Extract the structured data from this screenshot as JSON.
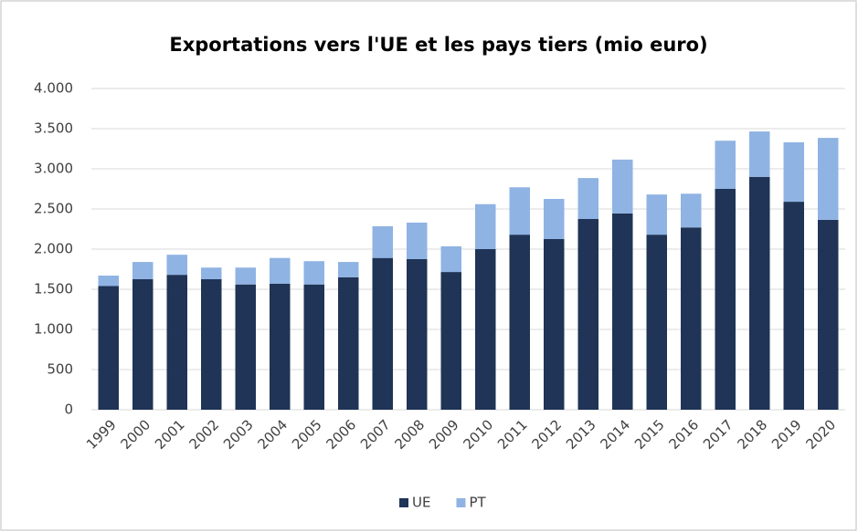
{
  "chart_data": {
    "type": "stacked_bar",
    "title": "Exportations vers l'UE et les pays tiers (mio euro)",
    "categories": [
      "1999",
      "2000",
      "2001",
      "2002",
      "2003",
      "2004",
      "2005",
      "2006",
      "2007",
      "2008",
      "2009",
      "2010",
      "2011",
      "2012",
      "2013",
      "2014",
      "2015",
      "2016",
      "2017",
      "2018",
      "2019",
      "2020"
    ],
    "series": [
      {
        "name": "UE",
        "color": "#1f3456",
        "values": [
          1540,
          1625,
          1680,
          1625,
          1560,
          1570,
          1560,
          1650,
          1890,
          1875,
          1715,
          2000,
          2180,
          2125,
          2375,
          2445,
          2180,
          2270,
          2750,
          2900,
          2590,
          2365
        ]
      },
      {
        "name": "PT",
        "color": "#8fb3e3",
        "values": [
          130,
          215,
          250,
          145,
          210,
          320,
          290,
          190,
          395,
          455,
          320,
          560,
          590,
          500,
          510,
          670,
          500,
          420,
          600,
          565,
          740,
          1020
        ]
      }
    ],
    "ylim": [
      0,
      4000
    ],
    "yticks": [
      0,
      500,
      {
        "value": 1000,
        "label": "1.000"
      },
      {
        "value": 1500,
        "label": "1.500"
      },
      {
        "value": 2000,
        "label": "2.000"
      },
      {
        "value": 2500,
        "label": "2.500"
      },
      {
        "value": 3000,
        "label": "3.000"
      },
      {
        "value": 3500,
        "label": "3.500"
      },
      {
        "value": 4000,
        "label": "4.000"
      }
    ],
    "grid": true,
    "legend": "bottom"
  }
}
